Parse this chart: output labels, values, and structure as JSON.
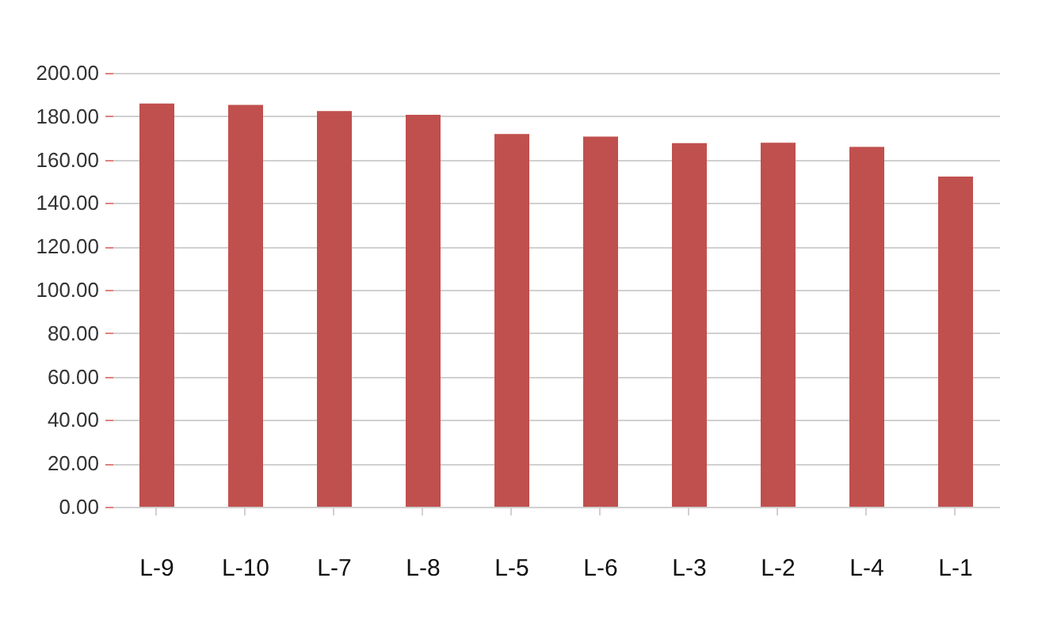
{
  "chart_data": {
    "type": "bar",
    "categories": [
      "L-9",
      "L-10",
      "L-7",
      "L-8",
      "L-5",
      "L-6",
      "L-3",
      "L-2",
      "L-4",
      "L-1"
    ],
    "values": [
      185.9,
      185.2,
      182.4,
      180.7,
      171.8,
      170.6,
      167.6,
      167.8,
      165.9,
      152.2
    ],
    "color": "#c0504d",
    "ylim": [
      0,
      200
    ],
    "yticks": [
      {
        "value": 0,
        "label": "0.00"
      },
      {
        "value": 20,
        "label": "20.00"
      },
      {
        "value": 40,
        "label": "40.00"
      },
      {
        "value": 60,
        "label": "60.00"
      },
      {
        "value": 80,
        "label": "80.00"
      },
      {
        "value": 100,
        "label": "100.00"
      },
      {
        "value": 120,
        "label": "120.00"
      },
      {
        "value": 140,
        "label": "140.00"
      },
      {
        "value": 160,
        "label": "160.00"
      },
      {
        "value": 180,
        "label": "180.00"
      },
      {
        "value": 200,
        "label": "200.00"
      }
    ],
    "grid": "y"
  }
}
